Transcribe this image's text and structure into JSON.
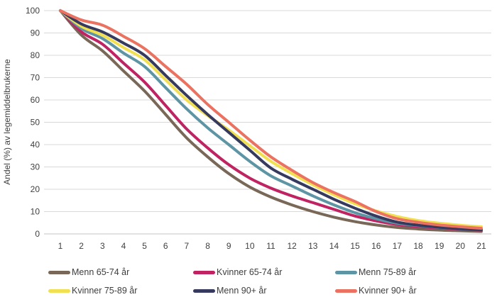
{
  "chart_data": {
    "type": "line",
    "title": "",
    "ylabel": "Andel (%) av legemiddelbrukerne",
    "xlabel": "",
    "x": [
      1,
      2,
      3,
      4,
      5,
      6,
      7,
      8,
      9,
      10,
      11,
      12,
      13,
      14,
      15,
      16,
      17,
      18,
      19,
      20,
      21
    ],
    "xlim": [
      1,
      21
    ],
    "ylim": [
      0,
      100
    ],
    "ytick_step": 10,
    "grid": "horizontal",
    "legend_position": "bottom",
    "series": [
      {
        "name": "Menn 65-74 år",
        "color": "#796857",
        "values": [
          100,
          89,
          82,
          73,
          64,
          53.5,
          43,
          34.5,
          27,
          21,
          16.5,
          13,
          10,
          7.5,
          5.5,
          4,
          2.9,
          2.2,
          1.7,
          1.4,
          1.1
        ]
      },
      {
        "name": "Kvinner 65-74 år",
        "color": "#c02361",
        "values": [
          100,
          90.5,
          85,
          76.5,
          68,
          57.5,
          47,
          38.5,
          31,
          25,
          20.5,
          17,
          14,
          11,
          8,
          5.8,
          4.2,
          3.3,
          2.6,
          2.1,
          1.7
        ]
      },
      {
        "name": "Menn 75-89 år",
        "color": "#5e95a5",
        "values": [
          100,
          92,
          87.5,
          81,
          75,
          65.5,
          56,
          47.5,
          40,
          32.5,
          26,
          21.5,
          17,
          13,
          9.5,
          6.8,
          4.8,
          3.7,
          2.9,
          2.3,
          1.9
        ]
      },
      {
        "name": "Kvinner 75-89 år",
        "color": "#f1e052",
        "values": [
          100,
          93,
          89,
          83.5,
          78,
          69,
          60,
          53,
          46.5,
          39.5,
          32.5,
          27,
          22,
          17.5,
          13.5,
          10.3,
          7.8,
          6,
          4.8,
          3.9,
          3.2
        ]
      },
      {
        "name": "Menn 90+ år",
        "color": "#363a5e",
        "values": [
          100,
          94,
          90.5,
          85.5,
          80,
          71,
          62,
          53.5,
          45.5,
          37.5,
          29.5,
          24.5,
          20,
          15.5,
          11.5,
          8,
          5.3,
          3.9,
          3,
          2.3,
          1.8
        ]
      },
      {
        "name": "Kvinner 90+ år",
        "color": "#eb7161",
        "values": [
          100,
          95.8,
          93.5,
          88.5,
          83,
          75,
          67,
          58,
          50,
          42,
          34.5,
          28.5,
          23,
          18.5,
          14.5,
          10,
          6.8,
          5.2,
          4,
          3.2,
          2.5
        ]
      }
    ]
  },
  "colors": {
    "grid": "#d9d9d9",
    "axis_line": "#d9d9d9",
    "tick_label": "#404040",
    "legend_text": "#3d3d3d",
    "background": "#ffffff"
  }
}
